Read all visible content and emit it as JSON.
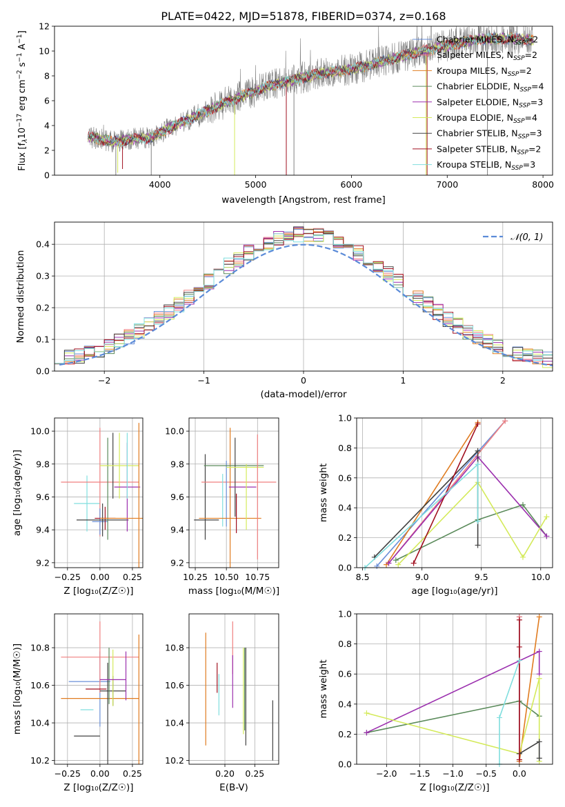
{
  "figure": {
    "title": "PLATE=0422, MJD=51878, FIBERID=0374, z=0.168"
  },
  "colors": {
    "grid": "#b0b0b0",
    "data": "#808080",
    "chabrier_miles": "#6a8fd8",
    "salpeter_miles": "#f07f7f",
    "kroupa_miles": "#e07b1f",
    "chabrier_elodie": "#5a8a5a",
    "salpeter_elodie": "#9b2fae",
    "kroupa_elodie": "#d4ea5a",
    "chabrier_stelib": "#404040",
    "salpeter_stelib": "#a00f1f",
    "kroupa_stelib": "#7fdede",
    "gaussian": "#5b8bd8"
  },
  "chart_data": [
    {
      "id": "spectrum",
      "type": "line",
      "xlabel": "wavelength [Angstrom, rest frame]",
      "ylabel_parts": [
        "Flux [f",
        "λ",
        "10",
        "−17",
        " erg cm",
        "−2",
        " s",
        "−1",
        " A",
        "−1",
        "]"
      ],
      "xlim": [
        2900,
        8100
      ],
      "ylim": [
        0,
        12
      ],
      "xticks": [
        4000,
        5000,
        6000,
        7000,
        8000
      ],
      "yticks": [
        0,
        2,
        4,
        6,
        8,
        10,
        12
      ],
      "grid": false,
      "legend_position": "right",
      "continuum": {
        "x": [
          3250,
          3500,
          3700,
          3900,
          4100,
          4300,
          4500,
          4700,
          4900,
          5100,
          5300,
          5500,
          5700,
          5900,
          6100,
          6300,
          6500,
          6700,
          6900,
          7100,
          7300,
          7500,
          7700,
          7900
        ],
        "y": [
          3.1,
          2.7,
          2.9,
          3.0,
          3.8,
          4.5,
          5.2,
          5.9,
          6.5,
          7.1,
          7.5,
          7.9,
          8.2,
          8.4,
          8.7,
          9.1,
          9.5,
          9.9,
          10.3,
          10.6,
          10.9,
          11.0,
          11.0,
          10.9
        ]
      },
      "legend": [
        {
          "label": "Chabrier MILES, N",
          "sub": "SSP",
          "suffix": "=2",
          "color": "chabrier_miles"
        },
        {
          "label": "Salpeter MILES, N",
          "sub": "SSP",
          "suffix": "=2",
          "color": "salpeter_miles"
        },
        {
          "label": "Kroupa MILES, N",
          "sub": "SSP",
          "suffix": "=2",
          "color": "kroupa_miles"
        },
        {
          "label": "Chabrier ELODIE, N",
          "sub": "SSP",
          "suffix": "=4",
          "color": "chabrier_elodie"
        },
        {
          "label": "Salpeter ELODIE, N",
          "sub": "SSP",
          "suffix": "=3",
          "color": "salpeter_elodie"
        },
        {
          "label": "Kroupa ELODIE, N",
          "sub": "SSP",
          "suffix": "=4",
          "color": "kroupa_elodie"
        },
        {
          "label": "Chabrier STELIB, N",
          "sub": "SSP",
          "suffix": "=3",
          "color": "chabrier_stelib"
        },
        {
          "label": "Salpeter STELIB, N",
          "sub": "SSP",
          "suffix": "=2",
          "color": "salpeter_stelib"
        },
        {
          "label": "Kroupa STELIB, N",
          "sub": "SSP",
          "suffix": "=3",
          "color": "kroupa_stelib"
        }
      ]
    },
    {
      "id": "residuals",
      "type": "line",
      "xlabel": "(data-model)/error",
      "ylabel": "Normed distribution",
      "xlim": [
        -2.5,
        2.5
      ],
      "ylim": [
        0,
        0.47
      ],
      "xticks": [
        -2,
        -1,
        0,
        1,
        2
      ],
      "yticks": [
        0.0,
        0.1,
        0.2,
        0.3,
        0.4
      ],
      "grid": true,
      "legend_position": "top-right",
      "legend": [
        {
          "label": "𝒩(0, 1)",
          "color": "gaussian"
        }
      ],
      "gaussian": {
        "mean": 0,
        "sigma": 1
      },
      "histogram": {
        "bin_width": 0.1,
        "x_start": -2.5,
        "series_colors": [
          "chabrier_miles",
          "salpeter_miles",
          "kroupa_miles",
          "chabrier_elodie",
          "salpeter_elodie",
          "kroupa_elodie",
          "chabrier_stelib",
          "salpeter_stelib",
          "kroupa_stelib"
        ]
      }
    },
    {
      "id": "age_vs_Z",
      "type": "scatter",
      "xlabel": "Z [log₁₀(Z/Z☉)]",
      "ylabel": "age  [log₁₀(age/yr)]",
      "xlim": [
        -0.35,
        0.33
      ],
      "ylim": [
        9.17,
        10.08
      ],
      "xticks": [
        -0.25,
        0.0,
        0.25
      ],
      "yticks": [
        9.2,
        9.4,
        9.6,
        9.8,
        10.0
      ],
      "grid": true,
      "points": [
        {
          "color": "kroupa_stelib",
          "x": -0.1,
          "y": 9.56,
          "xerr": 0.1,
          "yerr": 0.17
        },
        {
          "color": "salpeter_miles",
          "x": 0.0,
          "y": 9.69,
          "xerr": 0.3,
          "yerr": 0.33
        },
        {
          "color": "chabrier_miles",
          "x": 0.0,
          "y": 9.45,
          "xerr": 0.06,
          "yerr": 0.08
        },
        {
          "color": "salpeter_stelib",
          "x": 0.04,
          "y": 9.47,
          "xerr": 0.08,
          "yerr": 0.07
        },
        {
          "color": "chabrier_stelib",
          "x": 0.02,
          "y": 9.46,
          "xerr": 0.2,
          "yerr": 0.1
        },
        {
          "color": "chabrier_elodie",
          "x": 0.06,
          "y": 9.65,
          "xerr": 0.0,
          "yerr": 0.31
        },
        {
          "color": "chabrier_stelib",
          "x": 0.1,
          "y": 9.79,
          "xerr": 0.0,
          "yerr": 0.2
        },
        {
          "color": "kroupa_elodie",
          "x": 0.15,
          "y": 9.79,
          "xerr": 0.15,
          "yerr": 0.2
        },
        {
          "color": "salpeter_elodie",
          "x": 0.21,
          "y": 9.66,
          "xerr": 0.1,
          "yerr": 0.27
        },
        {
          "color": "kroupa_miles",
          "x": 0.3,
          "y": 9.47,
          "xerr": 0.3,
          "yerr": 0.58
        },
        {
          "color": "kroupa_stelib",
          "x": 0.21,
          "y": 9.79,
          "xerr": 0.0,
          "yerr": 0.2
        }
      ]
    },
    {
      "id": "age_vs_mass",
      "type": "scatter",
      "xlabel": "mass [log₁₀(M/M☉)]",
      "ylabel": "",
      "xlim": [
        10.2,
        10.92
      ],
      "ylim": [
        9.17,
        10.08
      ],
      "xticks": [
        10.25,
        10.5,
        10.75
      ],
      "yticks": [
        9.2,
        9.4,
        9.6,
        9.8,
        10.0
      ],
      "grid": true,
      "points": [
        {
          "color": "chabrier_stelib",
          "x": 10.33,
          "y": 9.6,
          "xerr": 0.0,
          "yerr": 0.26
        },
        {
          "color": "chabrier_stelib",
          "x": 10.34,
          "y": 9.46,
          "xerr": 0.1,
          "yerr": 0.0
        },
        {
          "color": "salpeter_miles",
          "x": 10.6,
          "y": 9.69,
          "xerr": 0.3,
          "yerr": 0.0
        },
        {
          "color": "kroupa_stelib",
          "x": 10.47,
          "y": 9.58,
          "xerr": 0.0,
          "yerr": 0.16
        },
        {
          "color": "chabrier_miles",
          "x": 10.5,
          "y": 9.62,
          "xerr": 0.0,
          "yerr": 0.2
        },
        {
          "color": "kroupa_miles",
          "x": 10.53,
          "y": 9.47,
          "xerr": 0.25,
          "yerr": 0.55
        },
        {
          "color": "chabrier_elodie",
          "x": 10.56,
          "y": 9.79,
          "xerr": 0.24,
          "yerr": 0.0
        },
        {
          "color": "salpeter_stelib",
          "x": 10.58,
          "y": 9.5,
          "xerr": 0.0,
          "yerr": 0.12
        },
        {
          "color": "chabrier_stelib",
          "x": 10.57,
          "y": 9.72,
          "xerr": 0.0,
          "yerr": 0.24
        },
        {
          "color": "salpeter_elodie",
          "x": 10.63,
          "y": 9.66,
          "xerr": 0.11,
          "yerr": 0.0
        },
        {
          "color": "kroupa_elodie",
          "x": 10.65,
          "y": 9.78,
          "xerr": 0.15,
          "yerr": 0.0
        },
        {
          "color": "kroupa_elodie",
          "x": 10.66,
          "y": 9.6,
          "xerr": 0.0,
          "yerr": 0.2
        },
        {
          "color": "salpeter_miles",
          "x": 10.75,
          "y": 9.6,
          "xerr": 0.0,
          "yerr": 0.38
        }
      ]
    },
    {
      "id": "mass_weight_vs_age",
      "type": "line",
      "xlabel": "age  [log₁₀(age/yr)]",
      "ylabel": "mass weight",
      "xlim": [
        8.45,
        10.1
      ],
      "ylim": [
        0,
        1
      ],
      "xticks": [
        8.5,
        9.0,
        9.5,
        10.0
      ],
      "yticks": [
        0.0,
        0.2,
        0.4,
        0.6,
        0.8,
        1.0
      ],
      "grid": true,
      "series": [
        {
          "color": "chabrier_miles",
          "x": [
            8.62,
            9.7
          ],
          "y": [
            0.01,
            0.98
          ]
        },
        {
          "color": "salpeter_miles",
          "x": [
            8.72,
            9.7
          ],
          "y": [
            0.03,
            0.98
          ]
        },
        {
          "color": "kroupa_miles",
          "x": [
            8.7,
            9.47
          ],
          "y": [
            0.02,
            0.97
          ]
        },
        {
          "color": "chabrier_elodie",
          "x": [
            8.78,
            9.47,
            9.85,
            10.05
          ],
          "y": [
            0.05,
            0.32,
            0.42,
            0.21
          ]
        },
        {
          "color": "salpeter_elodie",
          "x": [
            8.72,
            9.47,
            10.05
          ],
          "y": [
            0.03,
            0.74,
            0.21
          ]
        },
        {
          "color": "kroupa_elodie",
          "x": [
            8.8,
            9.47,
            9.85,
            10.05
          ],
          "y": [
            0.02,
            0.57,
            0.07,
            0.34
          ]
        },
        {
          "color": "chabrier_stelib",
          "x": [
            8.6,
            9.47,
            9.47
          ],
          "y": [
            0.07,
            0.78,
            0.15
          ]
        },
        {
          "color": "salpeter_stelib",
          "x": [
            8.93,
            9.47
          ],
          "y": [
            0.03,
            0.96
          ]
        },
        {
          "color": "kroupa_stelib",
          "x": [
            8.52,
            9.47,
            9.47
          ],
          "y": [
            0.0,
            0.69,
            0.31
          ]
        }
      ]
    },
    {
      "id": "mass_vs_Z",
      "type": "scatter",
      "xlabel": "Z [log₁₀(Z/Z☉)]",
      "ylabel": "mass [log₁₀(M/M☉)]",
      "xlim": [
        -0.35,
        0.33
      ],
      "ylim": [
        10.18,
        10.98
      ],
      "xticks": [
        -0.25,
        0.0,
        0.25
      ],
      "yticks": [
        10.2,
        10.4,
        10.6,
        10.8
      ],
      "grid": true,
      "points": [
        {
          "color": "chabrier_stelib",
          "x": -0.1,
          "y": 10.33,
          "xerr": 0.1,
          "yerr": 0.0
        },
        {
          "color": "kroupa_stelib",
          "x": -0.1,
          "y": 10.47,
          "xerr": 0.05,
          "yerr": 0.0
        },
        {
          "color": "chabrier_miles",
          "x": -0.08,
          "y": 10.62,
          "xerr": 0.16,
          "yerr": 0.0
        },
        {
          "color": "chabrier_miles",
          "x": 0.0,
          "y": 10.58,
          "xerr": 0.0,
          "yerr": 0.2
        },
        {
          "color": "salpeter_miles",
          "x": 0.0,
          "y": 10.75,
          "xerr": 0.3,
          "yerr": 0.19
        },
        {
          "color": "kroupa_miles",
          "x": 0.0,
          "y": 10.53,
          "xerr": 0.3,
          "yerr": 0.0
        },
        {
          "color": "chabrier_stelib",
          "x": 0.06,
          "y": 10.45,
          "xerr": 0.0,
          "yerr": 0.27
        },
        {
          "color": "salpeter_stelib",
          "x": -0.03,
          "y": 10.58,
          "xerr": 0.08,
          "yerr": 0.0
        },
        {
          "color": "chabrier_stelib",
          "x": 0.1,
          "y": 10.57,
          "xerr": 0.1,
          "yerr": 0.08
        },
        {
          "color": "chabrier_elodie",
          "x": 0.07,
          "y": 10.65,
          "xerr": 0.0,
          "yerr": 0.15
        },
        {
          "color": "kroupa_elodie",
          "x": 0.1,
          "y": 10.64,
          "xerr": 0.0,
          "yerr": 0.15
        },
        {
          "color": "salpeter_elodie",
          "x": 0.1,
          "y": 10.63,
          "xerr": 0.1,
          "yerr": 0.0
        },
        {
          "color": "salpeter_elodie",
          "x": 0.2,
          "y": 10.65,
          "xerr": 0.0,
          "yerr": 0.13
        },
        {
          "color": "kroupa_miles",
          "x": 0.3,
          "y": 10.5,
          "xerr": 0.0,
          "yerr": 0.37
        }
      ]
    },
    {
      "id": "mass_vs_ebv",
      "type": "scatter",
      "xlabel": "E(B-V)",
      "ylabel": "",
      "xlim": [
        0.14,
        0.29
      ],
      "ylim": [
        10.18,
        10.98
      ],
      "xticks": [
        0.2,
        0.25
      ],
      "yticks": [
        10.2,
        10.4,
        10.6,
        10.8
      ],
      "grid": true,
      "points": [
        {
          "color": "kroupa_miles",
          "x": 0.168,
          "y": 10.58,
          "xerr": 0.0,
          "yerr": 0.3
        },
        {
          "color": "salpeter_stelib",
          "x": 0.187,
          "y": 10.64,
          "xerr": 0.0,
          "yerr": 0.08
        },
        {
          "color": "kroupa_stelib",
          "x": 0.19,
          "y": 10.55,
          "xerr": 0.0,
          "yerr": 0.11
        },
        {
          "color": "salpeter_miles",
          "x": 0.213,
          "y": 10.8,
          "xerr": 0.0,
          "yerr": 0.14
        },
        {
          "color": "salpeter_elodie",
          "x": 0.213,
          "y": 10.62,
          "xerr": 0.0,
          "yerr": 0.14
        },
        {
          "color": "kroupa_elodie",
          "x": 0.231,
          "y": 10.57,
          "xerr": 0.0,
          "yerr": 0.23
        },
        {
          "color": "chabrier_elodie",
          "x": 0.233,
          "y": 10.58,
          "xerr": 0.0,
          "yerr": 0.22
        },
        {
          "color": "chabrier_stelib",
          "x": 0.235,
          "y": 10.54,
          "xerr": 0.0,
          "yerr": 0.26
        },
        {
          "color": "chabrier_stelib",
          "x": 0.28,
          "y": 10.36,
          "xerr": 0.0,
          "yerr": 0.16
        }
      ]
    },
    {
      "id": "mass_weight_vs_Z",
      "type": "line",
      "xlabel": "Z [log₁₀(Z/Z☉)]",
      "ylabel": "mass weight",
      "xlim": [
        -2.45,
        0.5
      ],
      "ylim": [
        0,
        1
      ],
      "xticks": [
        -2.0,
        -1.5,
        -1.0,
        -0.5,
        0.0
      ],
      "yticks": [
        0.0,
        0.2,
        0.4,
        0.6,
        0.8,
        1.0
      ],
      "grid": true,
      "series": [
        {
          "color": "chabrier_miles",
          "x": [
            0.0,
            0.0
          ],
          "y": [
            0.02,
            0.98
          ]
        },
        {
          "color": "salpeter_miles",
          "x": [
            0.0,
            0.0
          ],
          "y": [
            0.03,
            0.98
          ]
        },
        {
          "color": "kroupa_miles",
          "x": [
            0.0,
            0.3
          ],
          "y": [
            0.02,
            0.98
          ]
        },
        {
          "color": "chabrier_elodie",
          "x": [
            -2.3,
            0.0,
            0.3
          ],
          "y": [
            0.21,
            0.42,
            0.32
          ]
        },
        {
          "color": "salpeter_elodie",
          "x": [
            -2.3,
            0.3,
            0.3
          ],
          "y": [
            0.21,
            0.75,
            0.6
          ]
        },
        {
          "color": "kroupa_elodie",
          "x": [
            -2.3,
            0.0,
            0.3,
            0.3
          ],
          "y": [
            0.34,
            0.07,
            0.57,
            0.02
          ]
        },
        {
          "color": "chabrier_stelib",
          "x": [
            0.0,
            0.3,
            0.3
          ],
          "y": [
            0.07,
            0.15,
            0.04
          ]
        },
        {
          "color": "salpeter_stelib",
          "x": [
            0.0,
            0.0,
            0.0
          ],
          "y": [
            0.03,
            0.96,
            0.78
          ]
        },
        {
          "color": "kroupa_stelib",
          "x": [
            -0.3,
            -0.3,
            0.0
          ],
          "y": [
            0.0,
            0.31,
            0.69
          ]
        }
      ]
    }
  ]
}
